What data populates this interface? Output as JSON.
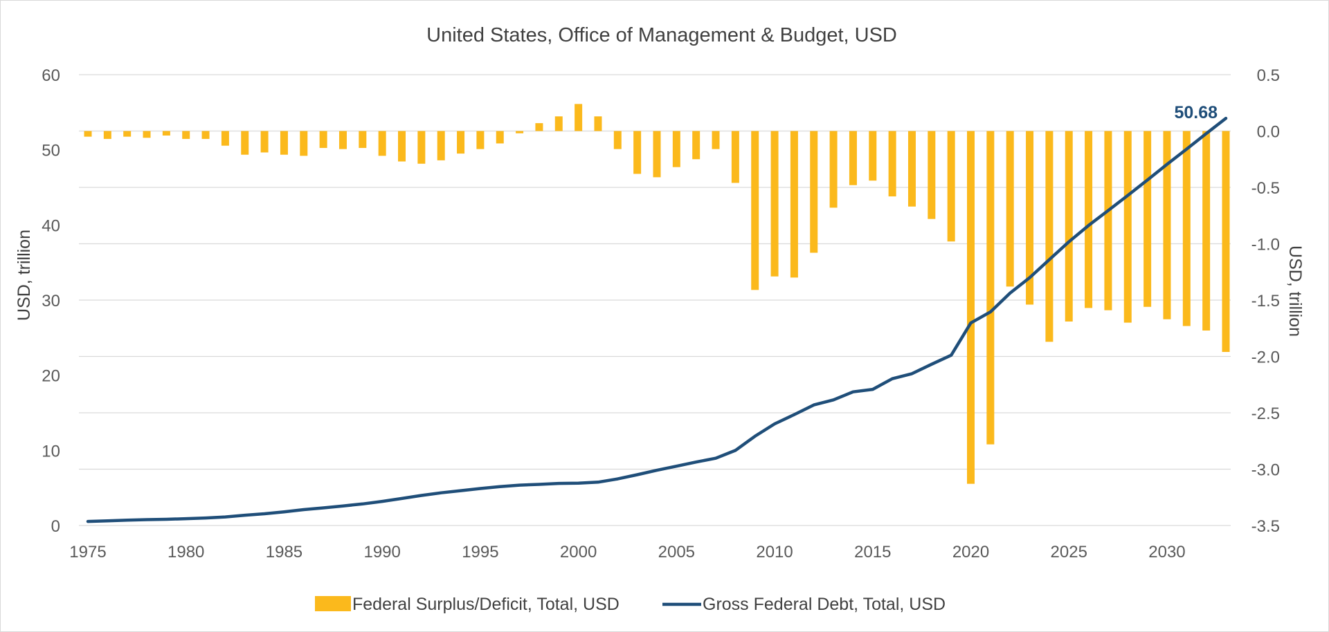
{
  "chart_data": {
    "type": "bar+line",
    "title": "United States, Office of Management & Budget, USD",
    "x": [
      1975,
      1976,
      1977,
      1978,
      1979,
      1980,
      1981,
      1982,
      1983,
      1984,
      1985,
      1986,
      1987,
      1988,
      1989,
      1990,
      1991,
      1992,
      1993,
      1994,
      1995,
      1996,
      1997,
      1998,
      1999,
      2000,
      2001,
      2002,
      2003,
      2004,
      2005,
      2006,
      2007,
      2008,
      2009,
      2010,
      2011,
      2012,
      2013,
      2014,
      2015,
      2016,
      2017,
      2018,
      2019,
      2020,
      2021,
      2022,
      2023,
      2024,
      2025,
      2026,
      2027,
      2028,
      2029,
      2030,
      2031,
      2032,
      2033
    ],
    "x_tick_labels": [
      "1975",
      "1980",
      "1985",
      "1990",
      "1995",
      "2000",
      "2005",
      "2010",
      "2015",
      "2020",
      "2025",
      "2030"
    ],
    "y_left": {
      "label": "USD, trillion",
      "lim": [
        0,
        60
      ],
      "ticks": [
        "0",
        "10",
        "20",
        "30",
        "40",
        "50",
        "60"
      ]
    },
    "y_right": {
      "label": "USD, trillion",
      "lim": [
        -3.5,
        0.5
      ],
      "ticks": [
        "-3.5",
        "-3.0",
        "-2.5",
        "-2.0",
        "-1.5",
        "-1.0",
        "-0.5",
        "0.0",
        "0.5"
      ]
    },
    "grid": true,
    "legend_position": "bottom",
    "series": [
      {
        "name": "Federal Surplus/Deficit, Total, USD",
        "type": "bar",
        "axis": "right",
        "color": "#fbb91c",
        "values": [
          -0.05,
          -0.07,
          -0.05,
          -0.06,
          -0.04,
          -0.07,
          -0.07,
          -0.13,
          -0.21,
          -0.19,
          -0.21,
          -0.22,
          -0.15,
          -0.16,
          -0.15,
          -0.22,
          -0.27,
          -0.29,
          -0.26,
          -0.2,
          -0.16,
          -0.11,
          -0.02,
          0.07,
          0.13,
          0.24,
          0.13,
          -0.16,
          -0.38,
          -0.41,
          -0.32,
          -0.25,
          -0.16,
          -0.46,
          -1.41,
          -1.29,
          -1.3,
          -1.08,
          -0.68,
          -0.48,
          -0.44,
          -0.58,
          -0.67,
          -0.78,
          -0.98,
          -3.13,
          -2.78,
          -1.38,
          -1.54,
          -1.87,
          -1.69,
          -1.57,
          -1.59,
          -1.7,
          -1.56,
          -1.67,
          -1.73,
          -1.77,
          -1.96
        ]
      },
      {
        "name": "Gross Federal Debt, Total, USD",
        "type": "line",
        "axis": "left",
        "color": "#1f4e79",
        "values": [
          0.54,
          0.63,
          0.71,
          0.78,
          0.83,
          0.91,
          1.0,
          1.14,
          1.37,
          1.56,
          1.82,
          2.12,
          2.35,
          2.6,
          2.87,
          3.21,
          3.6,
          4.0,
          4.35,
          4.64,
          4.92,
          5.18,
          5.37,
          5.48,
          5.6,
          5.63,
          5.77,
          6.2,
          6.76,
          7.35,
          7.9,
          8.45,
          8.95,
          9.99,
          11.88,
          13.53,
          14.76,
          16.05,
          16.72,
          17.79,
          18.12,
          19.54,
          20.21,
          21.46,
          22.67,
          26.95,
          28.43,
          30.93,
          32.99,
          35.38,
          37.76,
          39.93,
          41.92,
          43.93,
          45.98,
          48.07,
          50.1,
          52.17,
          54.19
        ]
      }
    ],
    "annotation": {
      "text": "50.68",
      "color": "#1f4e79"
    }
  }
}
